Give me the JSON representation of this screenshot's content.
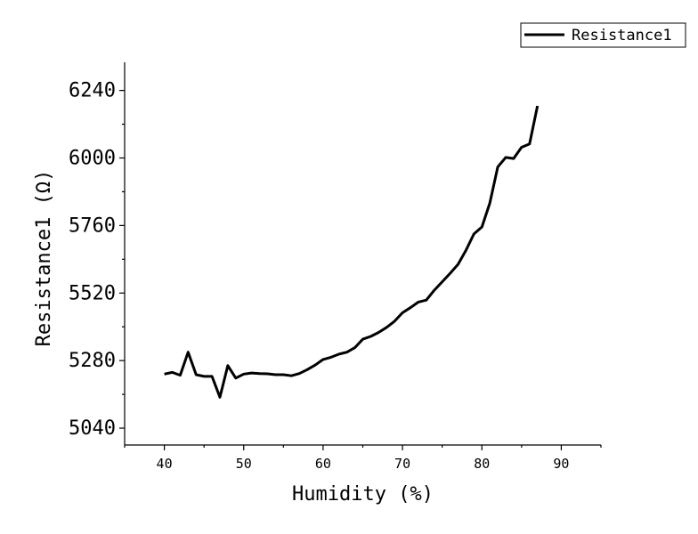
{
  "chart_data": {
    "type": "line",
    "xlabel": "Humidity (%)",
    "ylabel": "Resistance1 (Ω)",
    "xlim": [
      35,
      95
    ],
    "ylim": [
      4980,
      6340
    ],
    "x_ticks": [
      40,
      50,
      60,
      70,
      80,
      90
    ],
    "y_ticks": [
      5040,
      5280,
      5520,
      5760,
      6000,
      6240
    ],
    "legend": {
      "position": "top-right",
      "entries": [
        "Resistance1"
      ]
    },
    "grid": false,
    "series": [
      {
        "name": "Resistance1",
        "color": "#000000",
        "x": [
          40,
          41,
          42,
          43,
          44,
          45,
          46,
          47,
          48,
          49,
          50,
          51,
          52,
          53,
          54,
          55,
          56,
          57,
          58,
          59,
          60,
          61,
          62,
          63,
          64,
          65,
          66,
          67,
          68,
          69,
          70,
          71,
          72,
          73,
          74,
          75,
          76,
          77,
          78,
          79,
          80,
          81,
          82,
          83,
          84,
          85,
          86,
          87
        ],
        "y": [
          5232,
          5238,
          5228,
          5310,
          5230,
          5224,
          5224,
          5150,
          5262,
          5218,
          5232,
          5236,
          5234,
          5233,
          5230,
          5230,
          5226,
          5234,
          5248,
          5264,
          5284,
          5292,
          5303,
          5310,
          5326,
          5356,
          5366,
          5380,
          5398,
          5420,
          5450,
          5468,
          5488,
          5495,
          5530,
          5560,
          5590,
          5622,
          5672,
          5730,
          5755,
          5840,
          5968,
          6002,
          5998,
          6038,
          6050,
          6185
        ]
      }
    ]
  }
}
